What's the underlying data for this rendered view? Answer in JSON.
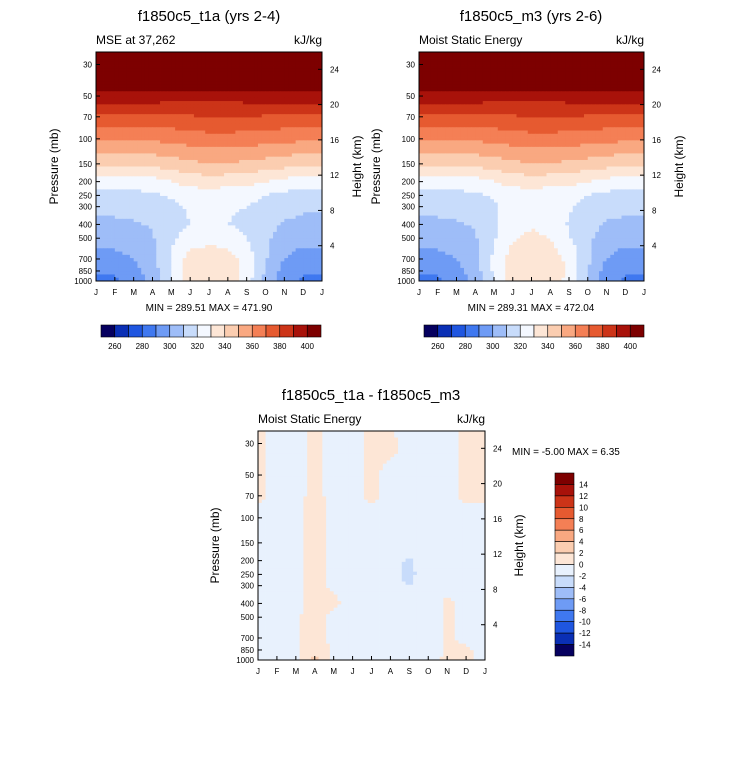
{
  "palette": {
    "abs_levels": [
      260,
      270,
      280,
      290,
      300,
      310,
      320,
      330,
      340,
      350,
      360,
      370,
      380,
      390,
      400
    ],
    "abs_colors": [
      "#06005f",
      "#0a2fb5",
      "#1f56e0",
      "#3f78f0",
      "#6e9bf5",
      "#9ebdf8",
      "#c8dcfb",
      "#f4f8ff",
      "#fde6d6",
      "#fbcdb0",
      "#f9a881",
      "#f47f55",
      "#e65a30",
      "#cc3418",
      "#a8120a",
      "#7d0000"
    ],
    "abs_labels": [
      "260",
      "280",
      "300",
      "320",
      "340",
      "360",
      "380",
      "400"
    ],
    "diff_levels": [
      -14,
      -12,
      -10,
      -8,
      -6,
      -4,
      -2,
      0,
      2,
      4,
      6,
      8,
      10,
      12,
      14
    ],
    "diff_colors": [
      "#06005f",
      "#0a2fb5",
      "#1f56e0",
      "#3f78f0",
      "#6e9bf5",
      "#9ebdf8",
      "#c8dcfb",
      "#e8f1fd",
      "#fde6d6",
      "#fbcdb0",
      "#f9a881",
      "#f47f55",
      "#e65a30",
      "#cc3418",
      "#a8120a",
      "#7d0000"
    ],
    "diff_labels": [
      "-14",
      "-12",
      "-10",
      "-8",
      "-6",
      "-4",
      "-2",
      "0",
      "2",
      "4",
      "6",
      "8",
      "10",
      "12",
      "14"
    ]
  },
  "chart_data": [
    {
      "type": "heatmap",
      "title": "f1850c5_t1a (yrs 2-4)",
      "left_subtitle": "MSE at 37,262",
      "right_subtitle": "kJ/kg",
      "xlabel": "",
      "ylabel": "Pressure (mb)",
      "y2label": "Height (km)",
      "x_ticks": [
        "J",
        "F",
        "M",
        "A",
        "M",
        "J",
        "J",
        "A",
        "S",
        "O",
        "N",
        "D",
        "J"
      ],
      "y_ticks": [
        1000,
        850,
        700,
        500,
        400,
        300,
        250,
        200,
        150,
        100,
        70,
        50,
        30
      ],
      "y2_ticks": [
        4,
        8,
        12,
        16,
        20,
        24
      ],
      "min_max_text": "MIN = 289.51 MAX = 471.90",
      "y_range": [
        1000,
        20
      ],
      "x_range": [
        0,
        12
      ],
      "x_coords": [
        0,
        1,
        2,
        3,
        4,
        5,
        6,
        7,
        8,
        9,
        10,
        11,
        12
      ],
      "p_coords": [
        1000,
        850,
        700,
        500,
        400,
        300,
        250,
        200,
        150,
        100,
        70,
        50,
        30,
        20
      ],
      "values": [
        [
          287,
          288,
          293,
          303,
          320,
          335,
          338,
          336,
          325,
          307,
          293,
          288,
          287
        ],
        [
          291,
          292,
          296,
          305,
          321,
          336,
          339,
          337,
          327,
          309,
          296,
          292,
          291
        ],
        [
          296,
          297,
          300,
          307,
          321,
          334,
          337,
          335,
          326,
          311,
          300,
          296,
          296
        ],
        [
          303,
          304,
          305,
          309,
          318,
          325,
          326,
          325,
          320,
          312,
          305,
          303,
          303
        ],
        [
          307,
          308,
          309,
          311,
          316,
          320,
          321,
          320,
          318,
          314,
          309,
          307,
          307
        ],
        [
          312,
          313,
          313,
          315,
          318,
          321,
          322,
          321,
          320,
          317,
          314,
          312,
          312
        ],
        [
          316,
          316,
          317,
          318,
          321,
          324,
          325,
          324,
          323,
          320,
          317,
          316,
          316
        ],
        [
          325,
          325,
          325,
          326,
          330,
          334,
          335,
          334,
          333,
          330,
          327,
          325,
          325
        ],
        [
          342,
          342,
          342,
          343,
          345,
          348,
          349,
          349,
          348,
          346,
          344,
          342,
          342
        ],
        [
          362,
          362,
          362,
          362,
          363,
          365,
          366,
          366,
          365,
          364,
          363,
          362,
          362
        ],
        [
          378,
          378,
          378,
          378,
          378,
          379,
          380,
          380,
          380,
          379,
          378,
          378,
          378
        ],
        [
          396,
          396,
          396,
          396,
          395,
          394,
          394,
          394,
          395,
          396,
          396,
          396,
          396
        ],
        [
          430,
          430,
          430,
          430,
          430,
          429,
          429,
          429,
          430,
          430,
          430,
          430,
          430
        ],
        [
          460,
          460,
          460,
          460,
          460,
          460,
          460,
          460,
          460,
          460,
          460,
          460,
          460
        ]
      ]
    },
    {
      "type": "heatmap",
      "title": "f1850c5_m3 (yrs 2-6)",
      "left_subtitle": "Moist Static Energy",
      "right_subtitle": "kJ/kg",
      "xlabel": "",
      "ylabel": "Pressure (mb)",
      "y2label": "Height (km)",
      "x_ticks": [
        "J",
        "F",
        "M",
        "A",
        "M",
        "J",
        "J",
        "A",
        "S",
        "O",
        "N",
        "D",
        "J"
      ],
      "y_ticks": [
        1000,
        850,
        700,
        500,
        400,
        300,
        250,
        200,
        150,
        100,
        70,
        50,
        30
      ],
      "y2_ticks": [
        4,
        8,
        12,
        16,
        20,
        24
      ],
      "min_max_text": "MIN = 289.31 MAX = 472.04",
      "y_range": [
        1000,
        20
      ],
      "x_range": [
        0,
        12
      ],
      "x_coords": [
        0,
        1,
        2,
        3,
        4,
        5,
        6,
        7,
        8,
        9,
        10,
        11,
        12
      ],
      "p_coords": [
        1000,
        850,
        700,
        500,
        400,
        300,
        250,
        200,
        150,
        100,
        70,
        50,
        30,
        20
      ],
      "values": [
        [
          287,
          288,
          293,
          303,
          320,
          336,
          339,
          337,
          326,
          308,
          294,
          288,
          287
        ],
        [
          291,
          292,
          296,
          305,
          322,
          337,
          340,
          338,
          328,
          310,
          296,
          292,
          291
        ],
        [
          296,
          297,
          300,
          307,
          322,
          335,
          338,
          336,
          327,
          312,
          300,
          296,
          296
        ],
        [
          303,
          304,
          305,
          309,
          319,
          329,
          332,
          330,
          321,
          312,
          305,
          303,
          303
        ],
        [
          308,
          308,
          309,
          311,
          318,
          326,
          329,
          327,
          319,
          314,
          309,
          308,
          308
        ],
        [
          312,
          313,
          313,
          315,
          319,
          323,
          324,
          323,
          321,
          317,
          314,
          312,
          312
        ],
        [
          316,
          316,
          317,
          318,
          321,
          324,
          325,
          324,
          323,
          320,
          317,
          316,
          316
        ],
        [
          325,
          325,
          325,
          326,
          330,
          334,
          335,
          334,
          333,
          330,
          327,
          325,
          325
        ],
        [
          342,
          342,
          342,
          343,
          345,
          348,
          349,
          349,
          348,
          346,
          344,
          342,
          342
        ],
        [
          362,
          362,
          362,
          362,
          363,
          365,
          366,
          366,
          365,
          364,
          363,
          362,
          362
        ],
        [
          378,
          378,
          378,
          378,
          378,
          379,
          380,
          380,
          380,
          379,
          378,
          378,
          378
        ],
        [
          396,
          396,
          396,
          396,
          395,
          394,
          394,
          394,
          395,
          396,
          396,
          396,
          396
        ],
        [
          430,
          430,
          430,
          430,
          430,
          429,
          429,
          429,
          430,
          430,
          430,
          430,
          430
        ],
        [
          460,
          460,
          460,
          460,
          460,
          460,
          460,
          460,
          460,
          460,
          460,
          460,
          460
        ]
      ]
    },
    {
      "type": "heatmap",
      "title": "f1850c5_t1a - f1850c5_m3",
      "left_subtitle": "Moist Static Energy",
      "right_subtitle": "kJ/kg",
      "xlabel": "",
      "ylabel": "Pressure (mb)",
      "y2label": "Height (km)",
      "x_ticks": [
        "J",
        "F",
        "M",
        "A",
        "M",
        "J",
        "J",
        "A",
        "S",
        "O",
        "N",
        "D",
        "J"
      ],
      "y_ticks": [
        1000,
        850,
        700,
        500,
        400,
        300,
        250,
        200,
        150,
        100,
        70,
        50,
        30
      ],
      "y2_ticks": [
        4,
        8,
        12,
        16,
        20,
        24
      ],
      "min_max_text": "MIN =  -5.00 MAX =   6.35",
      "y_range": [
        1000,
        20
      ],
      "x_range": [
        0,
        12
      ],
      "x_coords": [
        0,
        1,
        2,
        3,
        4,
        5,
        6,
        7,
        8,
        9,
        10,
        11,
        12
      ],
      "p_coords": [
        1000,
        850,
        700,
        500,
        400,
        300,
        250,
        200,
        150,
        100,
        70,
        50,
        30,
        20
      ],
      "values": [
        [
          -1.0,
          -0.5,
          -0.5,
          3.0,
          -0.5,
          -1.5,
          -1.5,
          -1.5,
          -1.5,
          -1.0,
          0.5,
          0.5,
          -1.0
        ],
        [
          -1.0,
          -0.5,
          -0.5,
          1.5,
          -0.5,
          -1.5,
          -1.5,
          -1.5,
          -1.5,
          -1.0,
          0.3,
          0.5,
          -1.0
        ],
        [
          -1.0,
          -0.5,
          -0.3,
          0.8,
          -0.5,
          -1.5,
          -1.5,
          -1.5,
          -1.5,
          -1.0,
          0.3,
          -0.5,
          -1.0
        ],
        [
          -0.5,
          -0.5,
          -0.3,
          0.8,
          -0.5,
          -1.5,
          -1.5,
          -1.5,
          -1.5,
          -1.0,
          0.3,
          -0.5,
          -0.5
        ],
        [
          -0.5,
          -0.5,
          -0.3,
          0.5,
          0.5,
          -1.0,
          -1.5,
          -1.5,
          -1.8,
          -1.0,
          0.3,
          -0.5,
          -0.5
        ],
        [
          -0.5,
          -0.5,
          -0.3,
          0.5,
          -0.3,
          -1.0,
          -1.5,
          -1.5,
          -2.0,
          -1.0,
          -0.5,
          -0.5,
          -0.5
        ],
        [
          -0.5,
          -0.5,
          -0.3,
          0.5,
          -0.3,
          -1.0,
          -1.5,
          -1.5,
          -2.5,
          -1.0,
          -0.5,
          -0.5,
          -0.5
        ],
        [
          -0.5,
          -0.5,
          -0.3,
          0.5,
          -0.3,
          -1.0,
          -1.5,
          -1.5,
          -2.2,
          -1.0,
          -0.5,
          -0.5,
          -0.5
        ],
        [
          -0.5,
          -0.5,
          -0.3,
          0.5,
          -0.3,
          -0.5,
          -1.0,
          -1.0,
          -1.0,
          -0.5,
          -0.5,
          -0.5,
          -0.5
        ],
        [
          -0.5,
          -0.5,
          -0.3,
          0.5,
          -0.3,
          -0.5,
          -0.5,
          -0.5,
          -0.5,
          -0.5,
          -0.5,
          -0.5,
          -0.5
        ],
        [
          0.3,
          -0.5,
          -0.3,
          0.3,
          -0.3,
          -0.5,
          0.3,
          -0.5,
          -0.5,
          -0.5,
          -0.5,
          0.3,
          0.3
        ],
        [
          0.3,
          -0.5,
          -0.5,
          0.3,
          -0.5,
          -0.5,
          0.3,
          -0.5,
          -0.5,
          -0.5,
          -0.5,
          0.3,
          0.3
        ],
        [
          0.5,
          -0.5,
          -0.5,
          0.3,
          -0.5,
          -0.5,
          0.5,
          0.5,
          -0.5,
          -0.5,
          -0.5,
          0.5,
          0.5
        ],
        [
          0.5,
          -0.5,
          -0.5,
          0.3,
          -0.5,
          -0.5,
          0.5,
          -0.5,
          -0.5,
          -0.5,
          -0.5,
          0.5,
          0.5
        ]
      ]
    }
  ]
}
